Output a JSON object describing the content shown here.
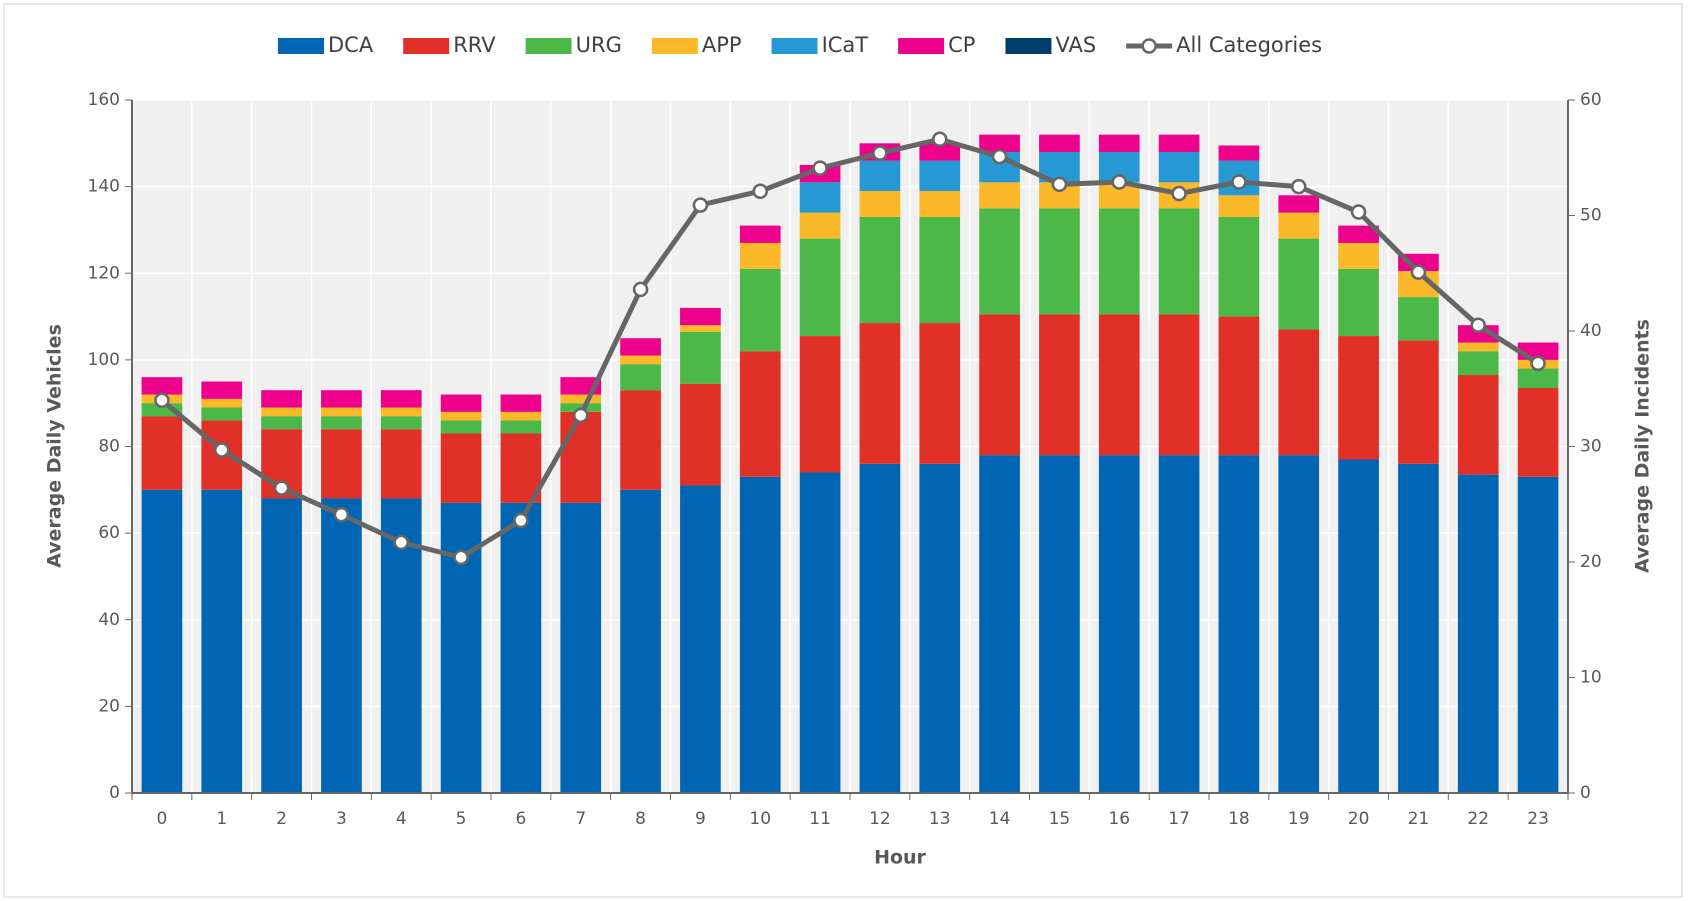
{
  "chart_data": {
    "type": "bar",
    "stacked": true,
    "x_label": "Hour",
    "y_label": "Average Daily Vehicles",
    "y2_label": "Average Daily Incidents",
    "categories": [
      "0",
      "1",
      "2",
      "3",
      "4",
      "5",
      "6",
      "7",
      "8",
      "9",
      "10",
      "11",
      "12",
      "13",
      "14",
      "15",
      "16",
      "17",
      "18",
      "19",
      "20",
      "21",
      "22",
      "23"
    ],
    "series": [
      {
        "name": "DCA",
        "color": "#0066b3",
        "values": [
          70,
          70,
          68,
          68,
          68,
          67,
          67,
          67,
          70,
          71,
          73,
          74,
          76,
          76,
          78,
          78,
          78,
          78,
          78,
          78,
          77,
          76,
          73.5,
          73
        ]
      },
      {
        "name": "RRV",
        "color": "#e03028",
        "values": [
          17,
          16,
          16,
          16,
          16,
          16,
          16,
          21,
          23,
          23.5,
          29,
          31.5,
          32.5,
          32.5,
          32.5,
          32.5,
          32.5,
          32.5,
          32,
          29,
          28.5,
          28.5,
          23,
          20.5
        ]
      },
      {
        "name": "URG",
        "color": "#4cb848",
        "values": [
          3,
          3,
          3,
          3,
          3,
          3,
          3,
          2,
          6,
          12,
          19,
          22.5,
          24.5,
          24.5,
          24.5,
          24.5,
          24.5,
          24.5,
          23,
          21,
          15.5,
          10,
          5.5,
          4.5
        ]
      },
      {
        "name": "APP",
        "color": "#fbb829",
        "values": [
          2,
          2,
          2,
          2,
          2,
          2,
          2,
          2,
          2,
          1.5,
          6,
          6,
          6,
          6,
          6,
          6,
          6,
          6,
          5,
          6,
          6,
          6,
          2,
          2
        ]
      },
      {
        "name": "ICaT",
        "color": "#2698d4",
        "values": [
          0,
          0,
          0,
          0,
          0,
          0,
          0,
          0,
          0,
          0,
          0,
          7,
          7,
          7,
          7,
          7,
          7,
          7,
          8,
          0,
          0,
          0,
          0,
          0
        ]
      },
      {
        "name": "CP",
        "color": "#ec008c",
        "values": [
          4,
          4,
          4,
          4,
          4,
          4,
          4,
          4,
          4,
          4,
          4,
          4,
          4,
          4,
          4,
          4,
          4,
          4,
          3.5,
          4,
          4,
          4,
          4,
          4
        ]
      },
      {
        "name": "VAS",
        "color": "#003f6b",
        "values": [
          0,
          0,
          0,
          0,
          0,
          0,
          0,
          0,
          0,
          0,
          0,
          0,
          0,
          0,
          0,
          0,
          0,
          0,
          0,
          0,
          0,
          0,
          0,
          0
        ]
      },
      {
        "name": "All Categories",
        "type": "line",
        "axis": "y2",
        "color": "#666666",
        "values": [
          34,
          29.7,
          26.4,
          24.1,
          21.7,
          20.4,
          23.6,
          32.7,
          43.6,
          50.9,
          52.1,
          54.1,
          55.4,
          56.6,
          55.1,
          52.7,
          52.9,
          51.9,
          52.9,
          52.5,
          50.3,
          45.1,
          40.5,
          37.2
        ]
      }
    ],
    "ylim": [
      0,
      160
    ],
    "yticks": [
      0,
      20,
      40,
      60,
      80,
      100,
      120,
      140,
      160
    ],
    "y2lim": [
      0,
      60
    ],
    "y2ticks": [
      0,
      10,
      20,
      30,
      40,
      50,
      60
    ],
    "grid": true,
    "legend": "top"
  }
}
